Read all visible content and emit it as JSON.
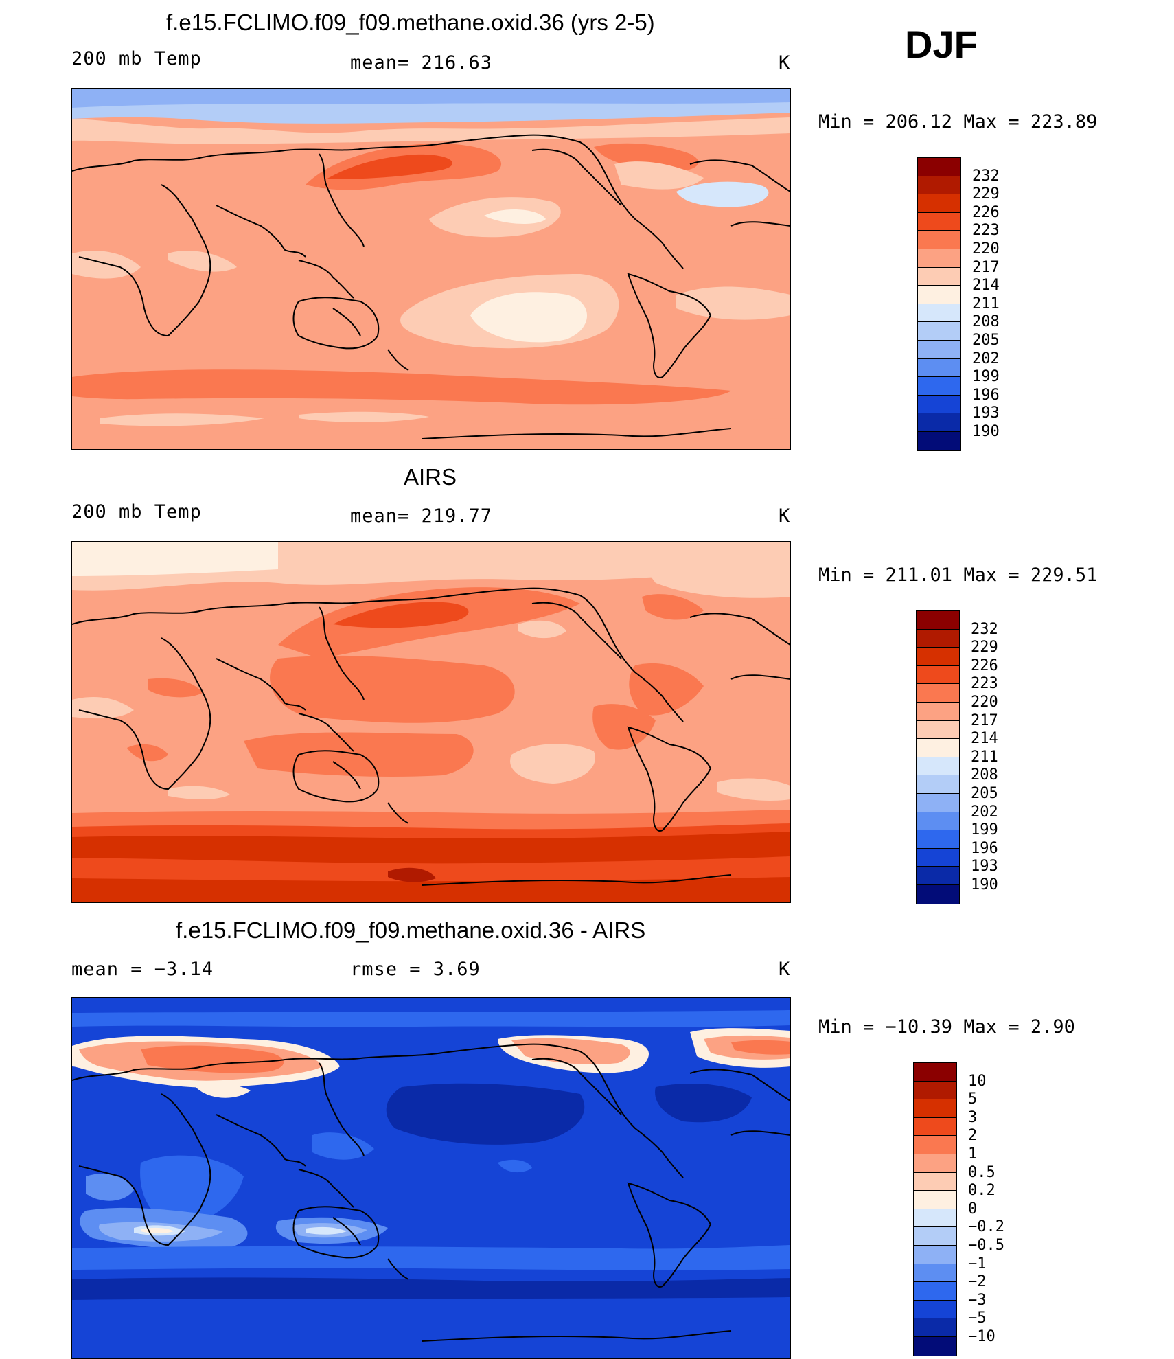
{
  "season": "DJF",
  "units": "K",
  "panels": [
    {
      "title": "f.e15.FCLIMO.f09_f09.methane.oxid.36 (yrs 2-5)",
      "left_label": "200 mb Temp",
      "center_label": "mean= 216.63",
      "right_label": "K",
      "minmax": "Min = 206.12 Max = 223.89",
      "legend_labels": [
        "232",
        "229",
        "226",
        "223",
        "220",
        "217",
        "214",
        "211",
        "208",
        "205",
        "202",
        "199",
        "196",
        "193",
        "190"
      ],
      "legend_colors": [
        "#8b0000",
        "#b01a00",
        "#d63000",
        "#ee4a1c",
        "#fa7850",
        "#fca283",
        "#fdccb4",
        "#fef0e1",
        "#d6e7fb",
        "#b3cdf7",
        "#8eb1f5",
        "#5d8ef2",
        "#2e68ee",
        "#1544d6",
        "#0a2aa8",
        "#020c78"
      ],
      "scene": "model"
    },
    {
      "title": "AIRS",
      "left_label": "200 mb Temp",
      "center_label": "mean= 219.77",
      "right_label": "K",
      "minmax": "Min = 211.01 Max = 229.51",
      "legend_labels": [
        "232",
        "229",
        "226",
        "223",
        "220",
        "217",
        "214",
        "211",
        "208",
        "205",
        "202",
        "199",
        "196",
        "193",
        "190"
      ],
      "legend_colors": [
        "#8b0000",
        "#b01a00",
        "#d63000",
        "#ee4a1c",
        "#fa7850",
        "#fca283",
        "#fdccb4",
        "#fef0e1",
        "#d6e7fb",
        "#b3cdf7",
        "#8eb1f5",
        "#5d8ef2",
        "#2e68ee",
        "#1544d6",
        "#0a2aa8",
        "#020c78"
      ],
      "scene": "obs"
    },
    {
      "title": "f.e15.FCLIMO.f09_f09.methane.oxid.36 - AIRS",
      "left_label": "mean = −3.14",
      "center_label": "rmse = 3.69",
      "right_label": "K",
      "minmax": "Min = −10.39 Max = 2.90",
      "legend_labels": [
        "10",
        "5",
        "3",
        "2",
        "1",
        "0.5",
        "0.2",
        "0",
        "−0.2",
        "−0.5",
        "−1",
        "−2",
        "−3",
        "−5",
        "−10"
      ],
      "legend_colors": [
        "#8b0000",
        "#b01a00",
        "#d63000",
        "#ee4a1c",
        "#fa7850",
        "#fca283",
        "#fdccb4",
        "#fef0e1",
        "#d6e7fb",
        "#b3cdf7",
        "#8eb1f5",
        "#5d8ef2",
        "#2e68ee",
        "#1544d6",
        "#0a2aa8",
        "#020c78"
      ],
      "scene": "diff"
    }
  ]
}
